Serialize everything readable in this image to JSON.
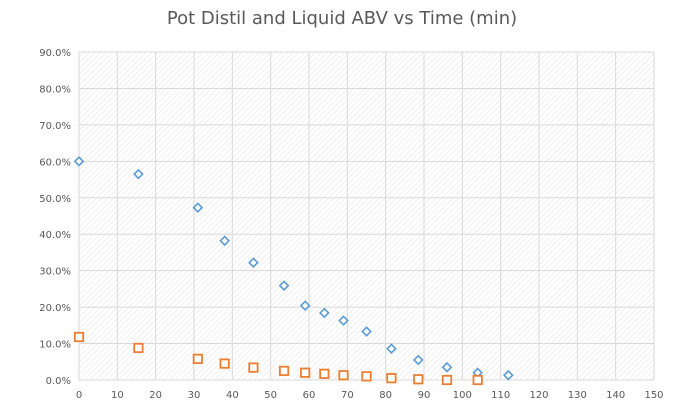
{
  "chart_data": {
    "type": "scatter",
    "title": "Pot Distil and Liquid ABV vs Time (min)",
    "xlabel": "",
    "ylabel": "",
    "xlim": [
      0,
      150
    ],
    "ylim": [
      0,
      0.9
    ],
    "x_ticks": [
      "0",
      "10",
      "20",
      "30",
      "40",
      "50",
      "60",
      "70",
      "80",
      "90",
      "100",
      "110",
      "120",
      "130",
      "140",
      "150"
    ],
    "y_ticks": [
      "0.0%",
      "10.0%",
      "20.0%",
      "30.0%",
      "40.0%",
      "50.0%",
      "60.0%",
      "70.0%",
      "80.0%",
      "90.0%"
    ],
    "grid": true,
    "legend": "none",
    "series": [
      {
        "marker": "diamond",
        "color": "#5B9BD5",
        "points": [
          [
            0,
            0.6
          ],
          [
            15.5,
            0.565
          ],
          [
            31,
            0.473
          ],
          [
            38,
            0.382
          ],
          [
            45.5,
            0.322
          ],
          [
            53.5,
            0.259
          ],
          [
            59,
            0.204
          ],
          [
            64,
            0.184
          ],
          [
            69,
            0.163
          ],
          [
            75,
            0.133
          ],
          [
            81.5,
            0.086
          ],
          [
            88.5,
            0.055
          ],
          [
            96,
            0.035
          ],
          [
            104,
            0.02
          ],
          [
            112,
            0.013
          ]
        ]
      },
      {
        "marker": "square",
        "color": "#ED7D31",
        "points": [
          [
            0,
            0.118
          ],
          [
            15.5,
            0.088
          ],
          [
            31,
            0.058
          ],
          [
            38,
            0.045
          ],
          [
            45.5,
            0.034
          ],
          [
            53.5,
            0.025
          ],
          [
            59,
            0.02
          ],
          [
            64,
            0.017
          ],
          [
            69,
            0.013
          ],
          [
            75,
            0.01
          ],
          [
            81.5,
            0.005
          ],
          [
            88.5,
            0.002
          ],
          [
            96,
            0.0
          ],
          [
            104,
            0.0
          ]
        ]
      }
    ]
  }
}
